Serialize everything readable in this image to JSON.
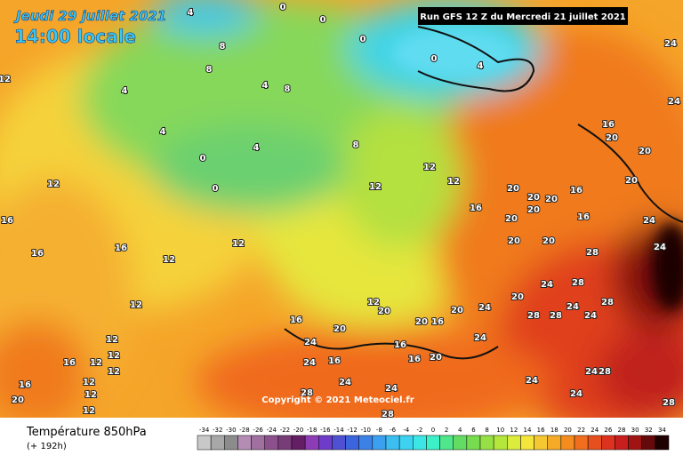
{
  "header": {
    "date": "Jeudi 29 juillet 2021",
    "time": "14:00 locale",
    "run": "Run GFS 12 Z du Mercredi 21 juillet 2021"
  },
  "copyright": "Copyright © 2021 Meteociel.fr",
  "footer": {
    "title": "Température 850hPa",
    "subtitle": "(+ 192h)"
  },
  "scale": {
    "values": [
      -34,
      -32,
      -30,
      -28,
      -26,
      -24,
      -22,
      -20,
      -18,
      -16,
      -14,
      -12,
      -10,
      -8,
      -6,
      -4,
      -2,
      0,
      2,
      4,
      6,
      8,
      10,
      12,
      14,
      16,
      18,
      20,
      22,
      24,
      26,
      28,
      30,
      32,
      34
    ],
    "colors": [
      "#c8c8c8",
      "#a8a8a8",
      "#8c8c8c",
      "#b48cb4",
      "#a070a0",
      "#8c508c",
      "#783c78",
      "#641e64",
      "#8c3cb4",
      "#6e3cc8",
      "#5050d2",
      "#3c64dc",
      "#3c82e6",
      "#3ca0f0",
      "#3cbef0",
      "#3cd2f0",
      "#3ce6e6",
      "#3cf0c8",
      "#50e68c",
      "#64dc64",
      "#78dc50",
      "#96e046",
      "#b4e63c",
      "#dcec3c",
      "#f5e63c",
      "#f5c832",
      "#f5aa28",
      "#f58c1e",
      "#f06e1e",
      "#e6501e",
      "#dc321e",
      "#c81e1e",
      "#a01414",
      "#640a0a",
      "#1e0000"
    ]
  },
  "contour_labels": [
    4,
    0,
    0,
    8,
    8,
    4,
    4,
    8,
    4,
    0,
    0,
    4,
    8,
    0,
    0,
    4,
    12,
    12,
    12,
    16,
    20,
    20,
    20,
    16,
    20,
    20,
    20,
    20,
    16,
    16,
    20,
    20,
    24,
    28,
    20,
    24,
    24,
    24,
    12,
    12,
    16,
    16,
    16,
    12,
    12,
    12,
    12,
    16,
    12,
    12,
    12,
    12,
    12,
    12,
    16,
    20,
    16,
    24,
    24,
    24,
    24,
    28,
    20,
    12,
    20,
    20,
    16,
    16,
    16,
    20,
    20,
    24,
    24,
    20,
    24,
    28,
    28,
    28,
    24,
    24,
    28,
    24,
    28,
    24,
    24,
    28,
    28,
    16
  ]
}
